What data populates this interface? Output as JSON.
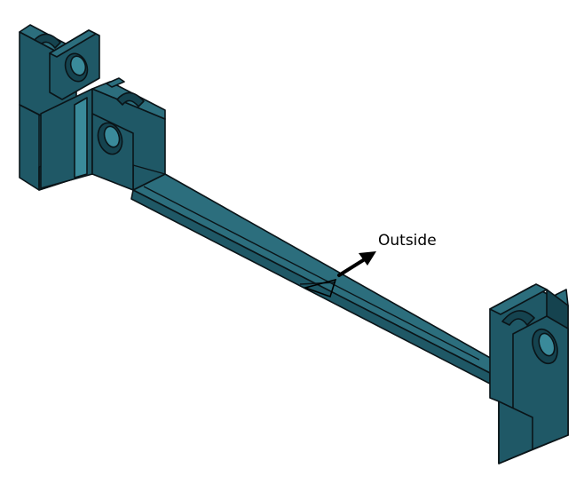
{
  "annotation": {
    "label": "Outside"
  },
  "colors": {
    "part_front": "#1f5866",
    "part_top": "#2c6e7d",
    "part_side": "#15434f",
    "part_highlight": "#3a8a9a",
    "outline": "#0a1418",
    "arrow": "#000000",
    "background": "#ffffff"
  },
  "icons": {
    "direction_marker": "triangle-outline",
    "normal_arrow": "arrow-up-right"
  }
}
